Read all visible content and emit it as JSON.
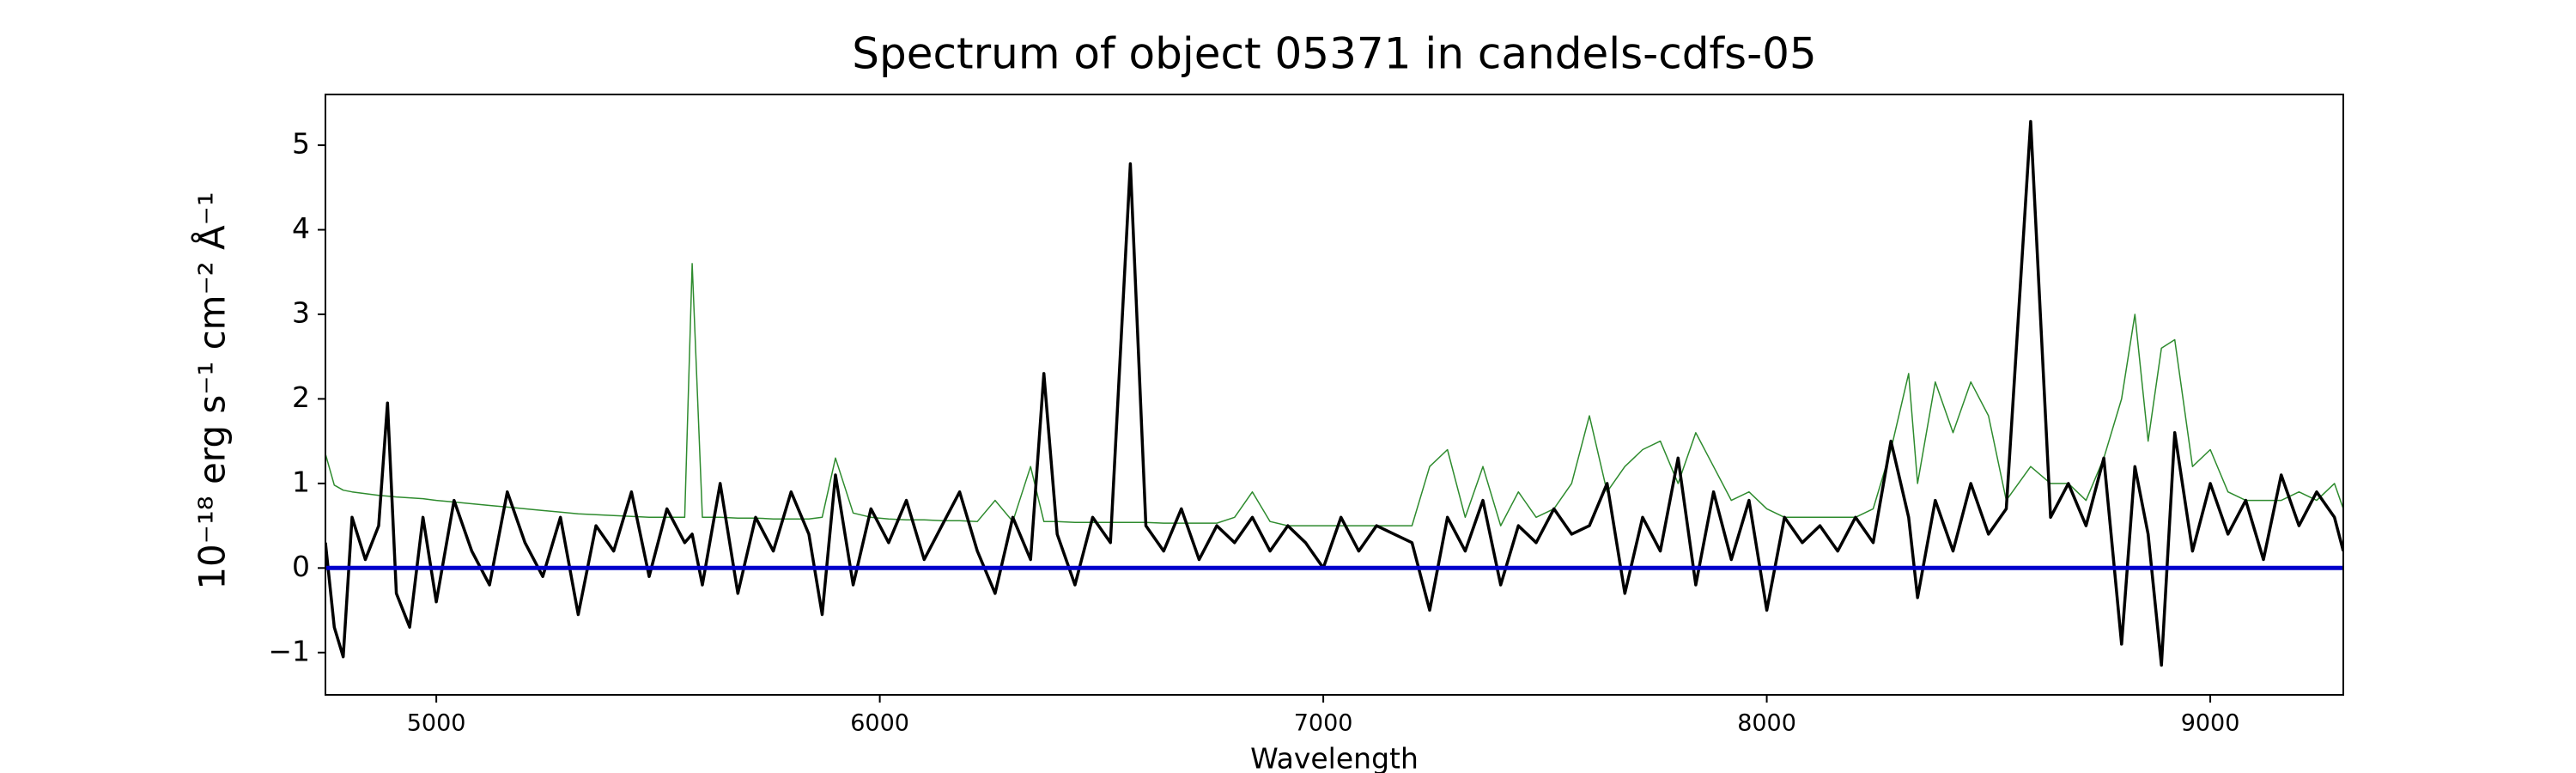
{
  "chart_data": {
    "type": "line",
    "title": "Spectrum of object 05371 in candels-cdfs-05",
    "xlabel": "Wavelength",
    "ylabel": "10⁻¹⁸ erg s⁻¹ cm⁻² Å⁻¹",
    "xlim": [
      4750,
      9300
    ],
    "ylim": [
      -1.5,
      5.6
    ],
    "xticks": [
      5000,
      6000,
      7000,
      8000,
      9000
    ],
    "yticks": [
      {
        "value": -1,
        "label": "−1"
      },
      0,
      1,
      2,
      3,
      4,
      5
    ],
    "x": [
      4750,
      4770,
      4790,
      4810,
      4840,
      4870,
      4890,
      4910,
      4940,
      4970,
      5000,
      5040,
      5080,
      5120,
      5160,
      5200,
      5240,
      5280,
      5320,
      5360,
      5400,
      5440,
      5480,
      5520,
      5560,
      5577,
      5600,
      5640,
      5680,
      5720,
      5760,
      5800,
      5840,
      5870,
      5900,
      5940,
      5980,
      6020,
      6060,
      6100,
      6140,
      6180,
      6220,
      6260,
      6300,
      6340,
      6370,
      6400,
      6440,
      6480,
      6520,
      6565,
      6600,
      6640,
      6680,
      6720,
      6760,
      6800,
      6840,
      6880,
      6920,
      6960,
      7000,
      7040,
      7080,
      7120,
      7160,
      7200,
      7240,
      7280,
      7320,
      7360,
      7400,
      7440,
      7480,
      7520,
      7560,
      7600,
      7640,
      7680,
      7720,
      7760,
      7800,
      7840,
      7880,
      7920,
      7960,
      8000,
      8040,
      8080,
      8120,
      8160,
      8200,
      8240,
      8280,
      8320,
      8340,
      8380,
      8420,
      8460,
      8500,
      8540,
      8595,
      8640,
      8680,
      8720,
      8760,
      8800,
      8830,
      8860,
      8890,
      8920,
      8960,
      9000,
      9040,
      9080,
      9120,
      9160,
      9200,
      9240,
      9280,
      9300
    ],
    "series": [
      {
        "color": "#2e8b2e",
        "width": 1.5,
        "values": [
          1.35,
          0.98,
          0.92,
          0.9,
          0.88,
          0.86,
          0.85,
          0.84,
          0.83,
          0.82,
          0.8,
          0.78,
          0.76,
          0.74,
          0.72,
          0.7,
          0.68,
          0.66,
          0.64,
          0.63,
          0.62,
          0.61,
          0.6,
          0.6,
          0.6,
          3.6,
          0.6,
          0.6,
          0.59,
          0.59,
          0.58,
          0.58,
          0.58,
          0.6,
          1.3,
          0.65,
          0.6,
          0.58,
          0.57,
          0.57,
          0.56,
          0.56,
          0.55,
          0.8,
          0.55,
          1.2,
          0.55,
          0.55,
          0.54,
          0.54,
          0.54,
          0.54,
          0.54,
          0.53,
          0.53,
          0.53,
          0.53,
          0.6,
          0.9,
          0.55,
          0.5,
          0.5,
          0.5,
          0.5,
          0.5,
          0.5,
          0.5,
          0.5,
          1.2,
          1.4,
          0.6,
          1.2,
          0.5,
          0.9,
          0.6,
          0.7,
          1.0,
          1.8,
          0.9,
          1.2,
          1.4,
          1.5,
          1.0,
          1.6,
          1.2,
          0.8,
          0.9,
          0.7,
          0.6,
          0.6,
          0.6,
          0.6,
          0.6,
          0.7,
          1.4,
          2.3,
          1.0,
          2.2,
          1.6,
          2.2,
          1.8,
          0.8,
          1.2,
          1.0,
          1.0,
          0.8,
          1.3,
          2.0,
          3.0,
          1.5,
          2.6,
          2.7,
          1.2,
          1.4,
          0.9,
          0.8,
          0.8,
          0.8,
          0.9,
          0.8,
          1.0,
          0.7
        ]
      },
      {
        "color": "#000000",
        "width": 3.5,
        "values": [
          0.3,
          -0.7,
          -1.05,
          0.6,
          0.1,
          0.5,
          1.95,
          -0.3,
          -0.7,
          0.6,
          -0.4,
          0.8,
          0.2,
          -0.2,
          0.9,
          0.3,
          -0.1,
          0.6,
          -0.55,
          0.5,
          0.2,
          0.9,
          -0.1,
          0.7,
          0.3,
          0.4,
          -0.2,
          1.0,
          -0.3,
          0.6,
          0.2,
          0.9,
          0.4,
          -0.55,
          1.1,
          -0.2,
          0.7,
          0.3,
          0.8,
          0.1,
          0.5,
          0.9,
          0.2,
          -0.3,
          0.6,
          0.1,
          2.3,
          0.4,
          -0.2,
          0.6,
          0.3,
          4.78,
          0.5,
          0.2,
          0.7,
          0.1,
          0.5,
          0.3,
          0.6,
          0.2,
          0.5,
          0.3,
          0.0,
          0.6,
          0.2,
          0.5,
          0.4,
          0.3,
          -0.5,
          0.6,
          0.2,
          0.8,
          -0.2,
          0.5,
          0.3,
          0.7,
          0.4,
          0.5,
          1.0,
          -0.3,
          0.6,
          0.2,
          1.3,
          -0.2,
          0.9,
          0.1,
          0.8,
          -0.5,
          0.6,
          0.3,
          0.5,
          0.2,
          0.6,
          0.3,
          1.5,
          0.6,
          -0.35,
          0.8,
          0.2,
          1.0,
          0.4,
          0.7,
          5.28,
          0.6,
          1.0,
          0.5,
          1.3,
          -0.9,
          1.2,
          0.4,
          -1.15,
          1.6,
          0.2,
          1.0,
          0.4,
          0.8,
          0.1,
          1.1,
          0.5,
          0.9,
          0.6,
          0.2
        ]
      },
      {
        "color": "#0000cc",
        "width": 5,
        "x": [
          4750,
          9300
        ],
        "values": [
          0,
          0
        ]
      }
    ]
  }
}
